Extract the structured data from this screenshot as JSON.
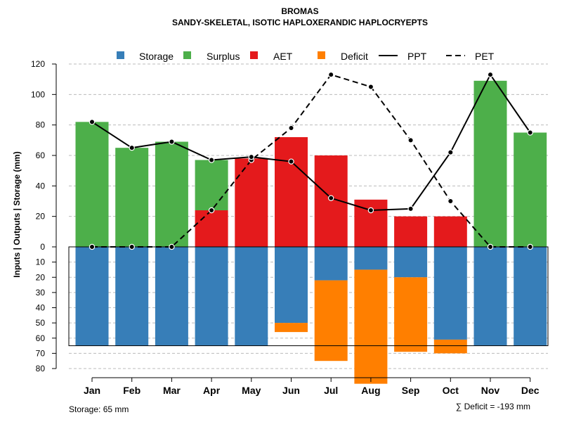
{
  "colors": {
    "storage": "#377EB8",
    "surplus": "#4DAF4A",
    "aet": "#E41A1C",
    "deficit": "#FF7F00",
    "line": "#000000",
    "grid": "#BBBBBB"
  },
  "chart_data": {
    "type": "bar",
    "title": "BROMAS",
    "subtitle": "SANDY-SKELETAL, ISOTIC HAPLOXERANDIC HAPLOCRYEPTS",
    "ylabel": "Inputs | Outputs | Storage    (mm)",
    "categories": [
      "Jan",
      "Feb",
      "Mar",
      "Apr",
      "May",
      "Jun",
      "Jul",
      "Aug",
      "Sep",
      "Oct",
      "Nov",
      "Dec"
    ],
    "ylim_top": [
      0,
      120
    ],
    "ylim_bottom": [
      0,
      80
    ],
    "yticks_top": [
      "0",
      "20",
      "40",
      "60",
      "80",
      "100",
      "120"
    ],
    "yticks_bottom": [
      "10",
      "20",
      "30",
      "40",
      "50",
      "60",
      "70",
      "80"
    ],
    "legend": [
      "Storage",
      "Surplus",
      "AET",
      "Deficit",
      "PPT",
      "PET"
    ],
    "legend_position": "top",
    "series": [
      {
        "name": "Surplus",
        "values": [
          82,
          65,
          69,
          33,
          0,
          0,
          0,
          0,
          0,
          0,
          109,
          75
        ]
      },
      {
        "name": "AET",
        "values": [
          0,
          0,
          0,
          24,
          58,
          72,
          60,
          31,
          20,
          20,
          0,
          0
        ]
      },
      {
        "name": "Storage",
        "values": [
          65,
          65,
          65,
          65,
          65,
          50,
          22,
          15,
          20,
          61,
          65,
          65
        ]
      },
      {
        "name": "Deficit",
        "values": [
          0,
          0,
          0,
          0,
          0,
          6,
          53,
          75,
          49,
          9,
          0,
          0
        ]
      },
      {
        "name": "PPT",
        "values": [
          82,
          65,
          69,
          57,
          59,
          56,
          32,
          24,
          25,
          62,
          113,
          75
        ]
      },
      {
        "name": "PET",
        "values": [
          0,
          0,
          0,
          24,
          57,
          78,
          113,
          105,
          70,
          30,
          0,
          0
        ]
      }
    ],
    "storage_capacity": 65,
    "footer_left": "Storage: 65 mm",
    "footer_right": "∑ Deficit = -193 mm"
  }
}
